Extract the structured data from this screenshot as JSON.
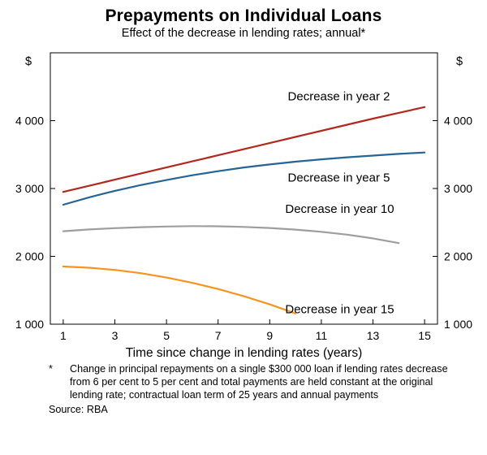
{
  "title": "Prepayments on Individual Loans",
  "subtitle": "Effect of the decrease in lending rates; annual*",
  "chart_data": {
    "type": "line",
    "title": "Prepayments on Individual Loans",
    "subtitle": "Effect of the decrease in lending rates; annual*",
    "xlabel": "Time since change in lending rates (years)",
    "y_unit_left": "$",
    "y_unit_right": "$",
    "xlim": [
      0.5,
      15.5
    ],
    "ylim": [
      1000,
      5000
    ],
    "x_ticks": [
      1,
      3,
      5,
      7,
      9,
      11,
      13,
      15
    ],
    "y_ticks": [
      1000,
      2000,
      3000,
      4000
    ],
    "y_tick_labels": [
      "1 000",
      "2 000",
      "3 000",
      "4 000"
    ],
    "grid": false,
    "legend_position": "inline-labels",
    "series": [
      {
        "name": "Decrease in year 2",
        "color": "#b2281e",
        "points": [
          [
            1,
            2950
          ],
          [
            2,
            3040
          ],
          [
            3,
            3130
          ],
          [
            4,
            3220
          ],
          [
            5,
            3310
          ],
          [
            6,
            3400
          ],
          [
            7,
            3490
          ],
          [
            8,
            3580
          ],
          [
            9,
            3670
          ],
          [
            10,
            3760
          ],
          [
            11,
            3850
          ],
          [
            12,
            3940
          ],
          [
            13,
            4030
          ],
          [
            14,
            4115
          ],
          [
            15,
            4200
          ]
        ],
        "label_anchor": [
          9.7,
          4300
        ]
      },
      {
        "name": "Decrease in year 5",
        "color": "#266494",
        "points": [
          [
            1,
            2760
          ],
          [
            2,
            2870
          ],
          [
            3,
            2965
          ],
          [
            4,
            3050
          ],
          [
            5,
            3125
          ],
          [
            6,
            3195
          ],
          [
            7,
            3255
          ],
          [
            8,
            3310
          ],
          [
            9,
            3355
          ],
          [
            10,
            3395
          ],
          [
            11,
            3430
          ],
          [
            12,
            3460
          ],
          [
            13,
            3485
          ],
          [
            14,
            3510
          ],
          [
            15,
            3530
          ]
        ],
        "label_anchor": [
          9.7,
          3100
        ]
      },
      {
        "name": "Decrease in year 10",
        "color": "#9e9e9e",
        "points": [
          [
            1,
            2370
          ],
          [
            2,
            2396
          ],
          [
            3,
            2415
          ],
          [
            4,
            2430
          ],
          [
            5,
            2440
          ],
          [
            6,
            2445
          ],
          [
            7,
            2443
          ],
          [
            8,
            2434
          ],
          [
            9,
            2418
          ],
          [
            10,
            2394
          ],
          [
            11,
            2362
          ],
          [
            12,
            2320
          ],
          [
            13,
            2265
          ],
          [
            14,
            2195
          ]
        ],
        "label_anchor": [
          9.6,
          2640
        ]
      },
      {
        "name": "Decrease in year 15",
        "color": "#f7941d",
        "points": [
          [
            1,
            1850
          ],
          [
            2,
            1832
          ],
          [
            3,
            1800
          ],
          [
            4,
            1752
          ],
          [
            5,
            1688
          ],
          [
            6,
            1610
          ],
          [
            7,
            1518
          ],
          [
            8,
            1412
          ],
          [
            9,
            1292
          ],
          [
            10,
            1158
          ]
        ],
        "label_anchor": [
          9.6,
          1160
        ]
      }
    ]
  },
  "footnote": {
    "marker": "*",
    "text": "Change in principal repayments on a single $300 000 loan if lending rates decrease from 6 per cent to 5 per cent and total payments are held constant at the original lending rate; contractual loan term of 25 years and annual payments",
    "source": "Source: RBA"
  }
}
